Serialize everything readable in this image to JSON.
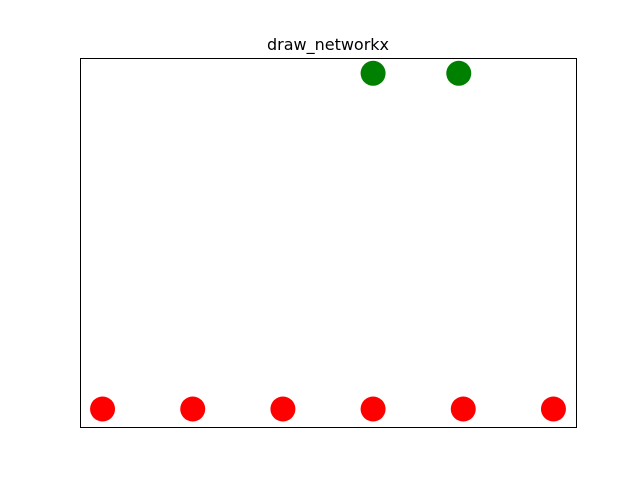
{
  "title": "draw_networkx",
  "chart_data": {
    "type": "scatter",
    "title": "draw_networkx",
    "xlabel": "",
    "ylabel": "",
    "axes_visible": false,
    "xlim": [
      -0.25,
      5.25
    ],
    "ylim": [
      -0.2,
      3.9
    ],
    "nodes": [
      {
        "x": 0,
        "y": 0,
        "color": "#ff0000"
      },
      {
        "x": 1,
        "y": 0,
        "color": "#ff0000"
      },
      {
        "x": 2,
        "y": 0,
        "color": "#ff0000"
      },
      {
        "x": 3,
        "y": 0,
        "color": "#ff0000"
      },
      {
        "x": 4,
        "y": 0,
        "color": "#ff0000"
      },
      {
        "x": 5,
        "y": 0,
        "color": "#ff0000"
      },
      {
        "x": 3,
        "y": 3.73,
        "color": "#008000"
      },
      {
        "x": 3.95,
        "y": 3.73,
        "color": "#008000"
      }
    ],
    "edges": []
  },
  "colors": {
    "node_red": "#ff0000",
    "node_green": "#008000",
    "frame": "#000000",
    "background": "#ffffff"
  }
}
